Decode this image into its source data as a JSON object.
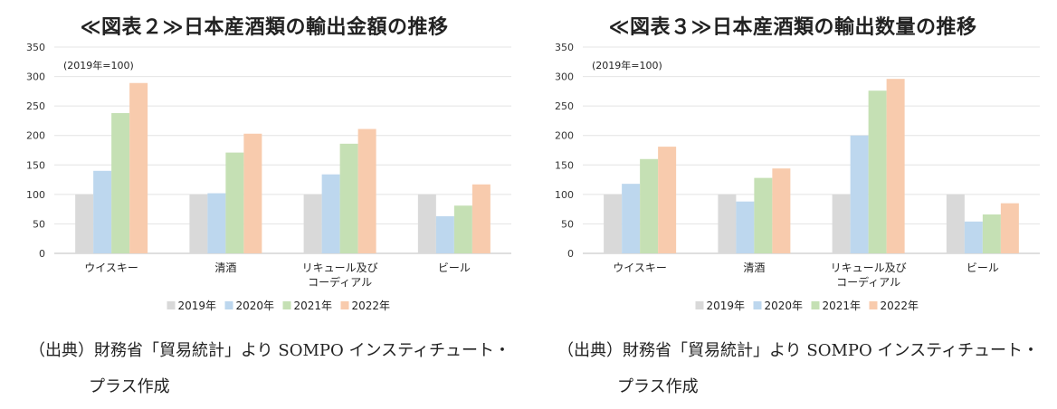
{
  "chart_data": [
    {
      "type": "bar",
      "title": "≪図表２≫日本産酒類の輸出金額の推移",
      "note": "(2019年=100)",
      "categories": [
        [
          "ウイスキー"
        ],
        [
          "清酒"
        ],
        [
          "リキュール及び",
          "コーディアル"
        ],
        [
          "ビール"
        ]
      ],
      "series": [
        {
          "name": "2019年",
          "color": "#d9d9d9",
          "values": [
            100,
            100,
            100,
            100
          ]
        },
        {
          "name": "2020年",
          "color": "#bdd7ee",
          "values": [
            140,
            102,
            134,
            63
          ]
        },
        {
          "name": "2021年",
          "color": "#c5e0b4",
          "values": [
            238,
            171,
            186,
            81
          ]
        },
        {
          "name": "2022年",
          "color": "#f8cbad",
          "values": [
            289,
            203,
            211,
            117
          ]
        }
      ],
      "yticks": [
        0,
        50,
        100,
        150,
        200,
        250,
        300,
        350
      ],
      "ylim": [
        0,
        350
      ],
      "grid": true,
      "legend": "bottom",
      "source_line1": "（出典）財務省「貿易統計」より SOMPO インスティチュート・",
      "source_line2": "プラス作成"
    },
    {
      "type": "bar",
      "title": "≪図表３≫日本産酒類の輸出数量の推移",
      "note": "(2019年=100)",
      "categories": [
        [
          "ウイスキー"
        ],
        [
          "清酒"
        ],
        [
          "リキュール及び",
          "コーディアル"
        ],
        [
          "ビール"
        ]
      ],
      "series": [
        {
          "name": "2019年",
          "color": "#d9d9d9",
          "values": [
            100,
            100,
            100,
            100
          ]
        },
        {
          "name": "2020年",
          "color": "#bdd7ee",
          "values": [
            118,
            88,
            200,
            54
          ]
        },
        {
          "name": "2021年",
          "color": "#c5e0b4",
          "values": [
            160,
            128,
            276,
            66
          ]
        },
        {
          "name": "2022年",
          "color": "#f8cbad",
          "values": [
            181,
            144,
            296,
            85
          ]
        }
      ],
      "yticks": [
        0,
        50,
        100,
        150,
        200,
        250,
        300,
        350
      ],
      "ylim": [
        0,
        350
      ],
      "grid": true,
      "legend": "bottom",
      "source_line1": "（出典）財務省「貿易統計」より SOMPO インスティチュート・",
      "source_line2": "プラス作成"
    }
  ]
}
